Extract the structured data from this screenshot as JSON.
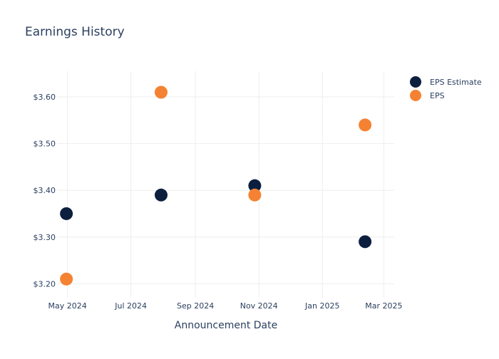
{
  "chart_data": {
    "type": "scatter",
    "title": "Earnings History",
    "xlabel": "Announcement Date",
    "ylabel": "",
    "x_ticks": [
      {
        "label": "May 2024",
        "date": "2024-05-01"
      },
      {
        "label": "Jul 2024",
        "date": "2024-07-01"
      },
      {
        "label": "Sep 2024",
        "date": "2024-09-01"
      },
      {
        "label": "Nov 2024",
        "date": "2024-11-01"
      },
      {
        "label": "Jan 2025",
        "date": "2025-01-01"
      },
      {
        "label": "Mar 2025",
        "date": "2025-03-01"
      }
    ],
    "xlim": [
      "2024-04-21",
      "2025-03-11"
    ],
    "y_ticks": [
      {
        "label": "$3.20",
        "value": 3.2
      },
      {
        "label": "$3.30",
        "value": 3.3
      },
      {
        "label": "$3.40",
        "value": 3.4
      },
      {
        "label": "$3.50",
        "value": 3.5
      },
      {
        "label": "$3.60",
        "value": 3.6
      }
    ],
    "ylim": [
      3.17,
      3.655
    ],
    "grid": true,
    "legend_position": "top-right",
    "series": [
      {
        "name": "EPS Estimate",
        "color": "#0c1f3f",
        "points": [
          {
            "x": "2024-04-30",
            "y": 3.35
          },
          {
            "x": "2024-07-30",
            "y": 3.39
          },
          {
            "x": "2024-10-28",
            "y": 3.41
          },
          {
            "x": "2025-02-11",
            "y": 3.29
          }
        ]
      },
      {
        "name": "EPS",
        "color": "#f58232",
        "points": [
          {
            "x": "2024-04-30",
            "y": 3.21
          },
          {
            "x": "2024-07-30",
            "y": 3.61
          },
          {
            "x": "2024-10-28",
            "y": 3.39
          },
          {
            "x": "2025-02-11",
            "y": 3.54
          }
        ]
      }
    ]
  },
  "colors": {
    "text": "#2a3f5f",
    "grid": "#eeeeee"
  }
}
